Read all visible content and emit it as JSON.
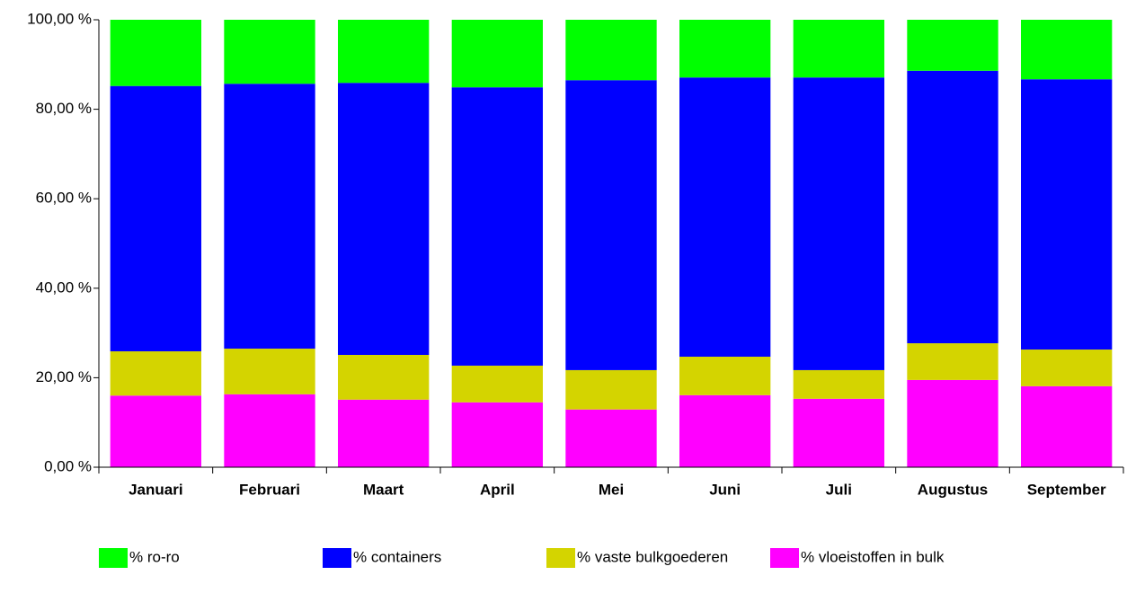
{
  "chart_data": {
    "type": "stacked_bar",
    "categories": [
      "Januari",
      "Februari",
      "Maart",
      "April",
      "Mei",
      "Juni",
      "Juli",
      "Augustus",
      "September"
    ],
    "series": [
      {
        "name": "% vloeistoffen in bulk",
        "color": "#ff00ff",
        "values": [
          16.0,
          16.3,
          15.1,
          14.5,
          12.9,
          16.1,
          15.3,
          19.5,
          18.1
        ]
      },
      {
        "name": "% vaste bulkgoederen",
        "color": "#d4d400",
        "values": [
          9.9,
          10.2,
          10.0,
          8.2,
          8.8,
          8.6,
          6.4,
          8.2,
          8.2
        ]
      },
      {
        "name": "% containers",
        "color": "#0000ff",
        "values": [
          59.3,
          59.2,
          60.8,
          62.2,
          64.8,
          62.4,
          65.4,
          60.9,
          60.4
        ]
      },
      {
        "name": "% ro-ro",
        "color": "#00ff00",
        "values": [
          14.8,
          14.3,
          14.1,
          15.1,
          13.5,
          12.9,
          12.9,
          11.4,
          13.3
        ]
      }
    ],
    "legend_order": [
      3,
      2,
      1,
      0
    ],
    "ylim": [
      0,
      100
    ],
    "yticks": [
      {
        "value": 0,
        "label": "0,00 %"
      },
      {
        "value": 20,
        "label": "20,00 %"
      },
      {
        "value": 40,
        "label": "40,00 %"
      },
      {
        "value": 60,
        "label": "60,00 %"
      },
      {
        "value": 80,
        "label": "80,00 %"
      },
      {
        "value": 100,
        "label": "100,00 %"
      }
    ]
  }
}
